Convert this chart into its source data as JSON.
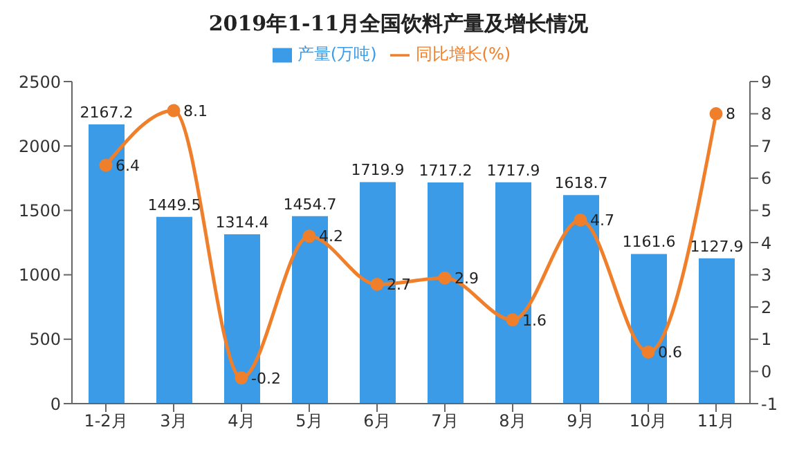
{
  "chart_data": {
    "type": "bar",
    "title": "2019年1-11月全国饮料产量及增长情况",
    "categories": [
      "1-2月",
      "3月",
      "4月",
      "5月",
      "6月",
      "7月",
      "8月",
      "9月",
      "10月",
      "11月"
    ],
    "series": [
      {
        "name": "产量(万吨)",
        "color": "#3c9be6",
        "values": [
          2167.2,
          1449.5,
          1314.4,
          1454.7,
          1719.9,
          1717.2,
          1717.9,
          1618.7,
          1161.6,
          1127.9
        ]
      },
      {
        "name": "同比增长(%)",
        "type": "line",
        "axis": "y2",
        "color": "#f07f2b",
        "values": [
          6.4,
          8.1,
          -0.2,
          4.2,
          2.7,
          2.9,
          1.6,
          4.7,
          0.6,
          8
        ]
      }
    ],
    "ylim": [
      0,
      2500
    ],
    "yticks": [
      0,
      500,
      1000,
      1500,
      2000,
      2500
    ],
    "y2lim": [
      -1,
      9
    ],
    "y2ticks": [
      -1,
      0,
      1,
      2,
      3,
      4,
      5,
      6,
      7,
      8,
      9
    ],
    "data_labels": true,
    "legend": "top",
    "marker": "circle",
    "grid": false
  }
}
